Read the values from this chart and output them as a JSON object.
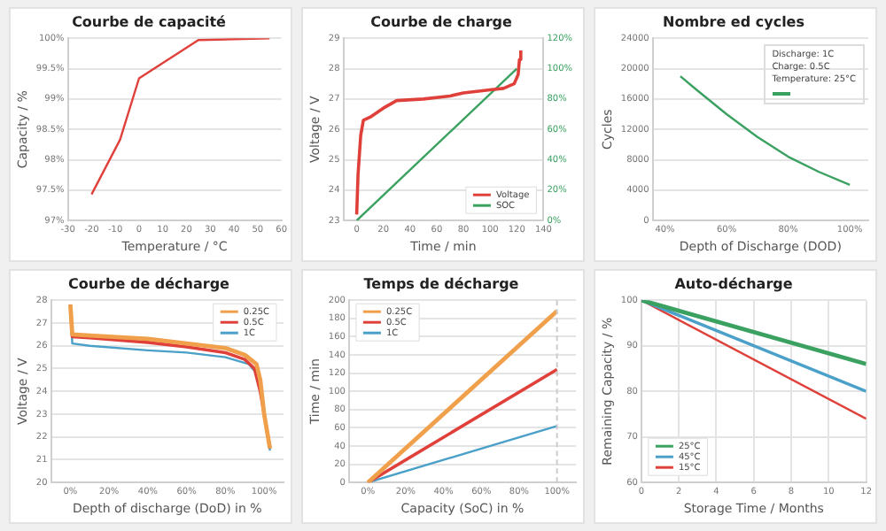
{
  "chart_data": [
    {
      "type": "line",
      "title": "Courbe de capacité",
      "xlabel": "Temperature / °C",
      "ylabel": "Capacity / %",
      "xlim": [
        -30,
        60
      ],
      "xticks": [
        -30,
        -20,
        -10,
        0,
        10,
        20,
        30,
        40,
        50,
        60
      ],
      "ylim": [
        97,
        100
      ],
      "yticks": [
        {
          "value": 97,
          "label": "97%"
        },
        {
          "value": 97.5,
          "label": "97.5%"
        },
        {
          "value": 98,
          "label": "98%"
        },
        {
          "value": 98.5,
          "label": "98.5%"
        },
        {
          "value": 99,
          "label": "99%"
        },
        {
          "value": 99.5,
          "label": "99.5%"
        },
        {
          "value": 100,
          "label": "100%"
        }
      ],
      "grid": "y",
      "series": [
        {
          "color": "#e0403a",
          "x": [
            -20,
            -8,
            0,
            25,
            55
          ],
          "values": [
            97.43,
            98.33,
            99.34,
            99.97,
            100
          ]
        }
      ]
    },
    {
      "type": "line",
      "title": "Courbe de charge",
      "xlabel": "Time / min",
      "ylabel": "Voltage / V",
      "xlim": [
        -10,
        140
      ],
      "xticks": [
        0,
        20,
        40,
        60,
        80,
        100,
        120,
        140
      ],
      "ylim": [
        23,
        29
      ],
      "yticks": [
        23,
        24,
        25,
        26,
        27,
        28,
        29
      ],
      "y2lim": [
        0,
        120
      ],
      "y2ticks": [
        {
          "value": 0,
          "label": "0%"
        },
        {
          "value": 20,
          "label": "20%"
        },
        {
          "value": 40,
          "label": "40%"
        },
        {
          "value": 60,
          "label": "60%"
        },
        {
          "value": 80,
          "label": "80%"
        },
        {
          "value": 100,
          "label": "100%"
        },
        {
          "value": 120,
          "label": "120%"
        }
      ],
      "grid": "y",
      "legend": "bottom right",
      "series": [
        {
          "name": "Voltage",
          "color": "#e0403a",
          "x": [
            0,
            1,
            3,
            5,
            10,
            20,
            30,
            50,
            70,
            80,
            100,
            110,
            118,
            121,
            122,
            123
          ],
          "values": [
            23.2,
            24.5,
            25.8,
            26.3,
            26.4,
            26.7,
            26.95,
            27.0,
            27.1,
            27.2,
            27.3,
            27.35,
            27.5,
            27.8,
            28.3,
            28.6
          ]
        },
        {
          "name": "SOC",
          "color": "#3aa160",
          "axis": "y2",
          "x": [
            0,
            120
          ],
          "values": [
            0,
            100
          ]
        }
      ]
    },
    {
      "type": "line",
      "title": "Nombre ed cycles",
      "xlabel": "Depth of Discharge (DOD)",
      "ylabel": "Cycles",
      "xlim": [
        36,
        106
      ],
      "xticks": [
        {
          "value": 40,
          "label": "40%"
        },
        {
          "value": 60,
          "label": "60%"
        },
        {
          "value": 80,
          "label": "80%"
        },
        {
          "value": 100,
          "label": "100%"
        }
      ],
      "ylim": [
        0,
        24000
      ],
      "yticks": [
        0,
        4000,
        8000,
        12000,
        16000,
        20000,
        24000
      ],
      "grid": "y",
      "annotations": [
        "Discharge: 1C",
        "Charge: 0.5C",
        "Temperature: 25°C"
      ],
      "series": [
        {
          "color": "#3aa160",
          "x": [
            45,
            50,
            60,
            70,
            80,
            90,
            100
          ],
          "values": [
            19000,
            17300,
            14000,
            11000,
            8400,
            6400,
            4700
          ]
        }
      ]
    },
    {
      "type": "line",
      "title": "Courbe de décharge",
      "xlabel": "Depth of discharge (DoD) in %",
      "ylabel": "Voltage / V",
      "xlim": [
        -10,
        110
      ],
      "xticks": [
        {
          "value": 0,
          "label": "0%"
        },
        {
          "value": 20,
          "label": "20%"
        },
        {
          "value": 40,
          "label": "40%"
        },
        {
          "value": 60,
          "label": "60%"
        },
        {
          "value": 80,
          "label": "80%"
        },
        {
          "value": 100,
          "label": "100%"
        }
      ],
      "ylim": [
        20,
        28
      ],
      "yticks": [
        20,
        21,
        22,
        23,
        24,
        25,
        26,
        27,
        28
      ],
      "grid": "y",
      "legend": "top right",
      "series": [
        {
          "name": "0.25C",
          "color": "#f0a04b",
          "x": [
            0,
            1,
            10,
            40,
            60,
            80,
            90,
            96,
            98,
            100,
            103
          ],
          "values": [
            27.8,
            26.5,
            26.45,
            26.3,
            26.1,
            25.9,
            25.6,
            25.2,
            24.5,
            23,
            21.5
          ]
        },
        {
          "name": "0.5C",
          "color": "#e0403a",
          "x": [
            0,
            1,
            10,
            40,
            60,
            80,
            90,
            95,
            98,
            103
          ],
          "values": [
            27.8,
            26.4,
            26.35,
            26.15,
            25.95,
            25.7,
            25.4,
            25,
            24,
            21.5
          ]
        },
        {
          "name": "1C",
          "color": "#4aa0c8",
          "x": [
            0,
            1,
            10,
            40,
            60,
            80,
            92,
            96,
            99,
            103
          ],
          "values": [
            27.8,
            26.1,
            26.0,
            25.8,
            25.7,
            25.5,
            25.2,
            24.8,
            23.5,
            21.4
          ]
        }
      ]
    },
    {
      "type": "line",
      "title": "Temps de décharge",
      "xlabel": "Capacity (SoC) in %",
      "ylabel": "Time / min",
      "x": [
        0,
        100
      ],
      "xlim": [
        -10,
        110
      ],
      "xticks": [
        {
          "value": 0,
          "label": "0%"
        },
        {
          "value": 20,
          "label": "20%"
        },
        {
          "value": 40,
          "label": "40%"
        },
        {
          "value": 60,
          "label": "60%"
        },
        {
          "value": 80,
          "label": "80%"
        },
        {
          "value": 100,
          "label": "100%"
        }
      ],
      "ylim": [
        0,
        200
      ],
      "yticks": [
        0,
        20,
        40,
        60,
        80,
        100,
        120,
        140,
        160,
        180,
        200
      ],
      "grid": "y",
      "legend": "top left",
      "ref_lines": [
        {
          "axis": "x",
          "value": 100,
          "color": "#cccccc",
          "line_style": "dashed"
        }
      ],
      "series": [
        {
          "name": "0.25C",
          "color": "#f0a04b",
          "values": [
            0,
            188
          ]
        },
        {
          "name": "0.5C",
          "color": "#e0403a",
          "values": [
            0,
            124
          ]
        },
        {
          "name": "1C",
          "color": "#4aa0c8",
          "values": [
            0,
            62
          ]
        }
      ]
    },
    {
      "type": "line",
      "title": "Auto-décharge",
      "xlabel": "Storage Time / Months",
      "ylabel": "Remaining Capacity / %",
      "x": [
        0,
        12
      ],
      "xlim": [
        0,
        12
      ],
      "xticks": [
        0,
        2,
        4,
        6,
        8,
        10,
        12
      ],
      "ylim": [
        60,
        100
      ],
      "yticks": [
        60,
        70,
        80,
        90,
        100
      ],
      "grid": true,
      "legend": "bottom left",
      "series": [
        {
          "name": "25°C",
          "color": "#3aa160",
          "values": [
            100,
            86
          ]
        },
        {
          "name": "45°C",
          "color": "#4aa0c8",
          "values": [
            100,
            80
          ]
        },
        {
          "name": "15°C",
          "color": "#e0403a",
          "values": [
            100,
            74
          ]
        }
      ]
    }
  ]
}
